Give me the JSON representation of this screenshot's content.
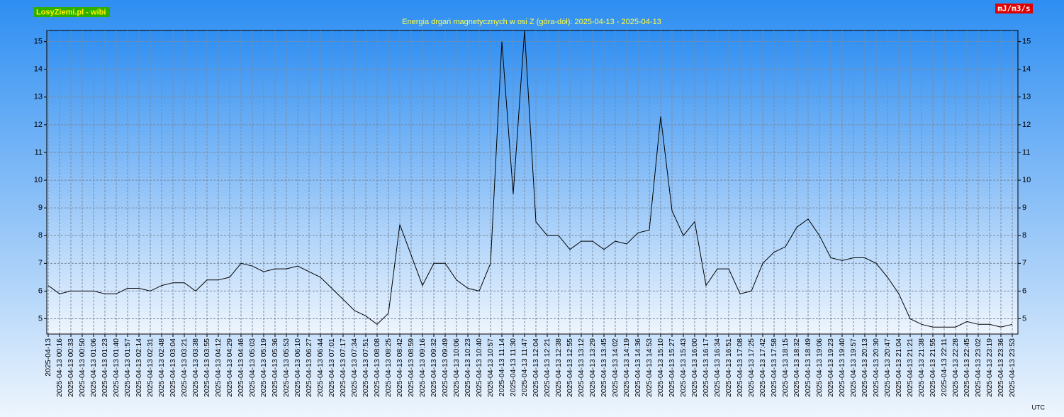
{
  "chart_data": {
    "type": "line",
    "title": "Energia drgań magnetycznych w osi Z (góra-dół): 2025-04-13 - 2025-04-13",
    "site_label": "LosyZiemi.pl - wibi",
    "unit_label": "mJ/m3/s",
    "time_zone": "UTC",
    "categories": [
      "2025-04-13",
      "2025-04-13 00:16",
      "2025-04-13 00:33",
      "2025-04-13 00:50",
      "2025-04-13 01:06",
      "2025-04-13 01:23",
      "2025-04-13 01:40",
      "2025-04-13 01:57",
      "2025-04-13 02:14",
      "2025-04-13 02:31",
      "2025-04-13 02:48",
      "2025-04-13 03:04",
      "2025-04-13 03:21",
      "2025-04-13 03:38",
      "2025-04-13 03:55",
      "2025-04-13 04:12",
      "2025-04-13 04:29",
      "2025-04-13 04:46",
      "2025-04-13 05:03",
      "2025-04-13 05:19",
      "2025-04-13 05:36",
      "2025-04-13 05:53",
      "2025-04-13 06:10",
      "2025-04-13 06:27",
      "2025-04-13 06:44",
      "2025-04-13 07:01",
      "2025-04-13 07:17",
      "2025-04-13 07:34",
      "2025-04-13 07:51",
      "2025-04-13 08:08",
      "2025-04-13 08:25",
      "2025-04-13 08:42",
      "2025-04-13 08:59",
      "2025-04-13 09:16",
      "2025-04-13 09:32",
      "2025-04-13 09:49",
      "2025-04-13 10:06",
      "2025-04-13 10:23",
      "2025-04-13 10:40",
      "2025-04-13 10:57",
      "2025-04-13 11:14",
      "2025-04-13 11:30",
      "2025-04-13 11:47",
      "2025-04-13 12:04",
      "2025-04-13 12:21",
      "2025-04-13 12:38",
      "2025-04-13 12:55",
      "2025-04-13 13:12",
      "2025-04-13 13:29",
      "2025-04-13 13:45",
      "2025-04-13 14:02",
      "2025-04-13 14:19",
      "2025-04-13 14:36",
      "2025-04-13 14:53",
      "2025-04-13 15:10",
      "2025-04-13 15:27",
      "2025-04-13 15:43",
      "2025-04-13 16:00",
      "2025-04-13 16:17",
      "2025-04-13 16:34",
      "2025-04-13 16:51",
      "2025-04-13 17:08",
      "2025-04-13 17:25",
      "2025-04-13 17:42",
      "2025-04-13 17:58",
      "2025-04-13 18:15",
      "2025-04-13 18:32",
      "2025-04-13 18:49",
      "2025-04-13 19:06",
      "2025-04-13 19:23",
      "2025-04-13 19:40",
      "2025-04-13 19:57",
      "2025-04-13 20:13",
      "2025-04-13 20:30",
      "2025-04-13 20:47",
      "2025-04-13 21:04",
      "2025-04-13 21:21",
      "2025-04-13 21:38",
      "2025-04-13 21:55",
      "2025-04-13 22:11",
      "2025-04-13 22:28",
      "2025-04-13 22:45",
      "2025-04-13 23:02",
      "2025-04-13 23:19",
      "2025-04-13 23:36",
      "2025-04-13 23:53"
    ],
    "values": [
      6.2,
      5.9,
      6.0,
      6.0,
      6.0,
      5.9,
      5.9,
      6.1,
      6.1,
      6.0,
      6.2,
      6.3,
      6.3,
      6.0,
      6.4,
      6.4,
      6.5,
      7.0,
      6.9,
      6.7,
      6.8,
      6.8,
      6.9,
      6.7,
      6.5,
      6.1,
      5.7,
      5.3,
      5.1,
      4.8,
      5.2,
      8.4,
      7.3,
      6.2,
      7.0,
      7.0,
      6.4,
      6.1,
      6.0,
      7.0,
      15.0,
      9.5,
      15.4,
      8.5,
      8.0,
      8.0,
      7.5,
      7.8,
      7.8,
      7.5,
      7.8,
      7.7,
      8.1,
      8.2,
      12.3,
      8.9,
      8.0,
      8.5,
      6.2,
      6.8,
      6.8,
      5.9,
      6.0,
      7.0,
      7.4,
      7.6,
      8.3,
      8.6,
      8.0,
      7.2,
      7.1,
      7.2,
      7.2,
      7.0,
      6.5,
      5.9,
      5.0,
      4.8,
      4.7,
      4.7,
      4.7,
      4.9,
      4.8,
      4.8,
      4.7,
      4.8
    ],
    "color": "#000000",
    "ylim": [
      4.45,
      15.4
    ],
    "yticks": [
      5,
      6,
      7,
      8,
      9,
      10,
      11,
      12,
      13,
      14,
      15
    ],
    "grid": true
  }
}
